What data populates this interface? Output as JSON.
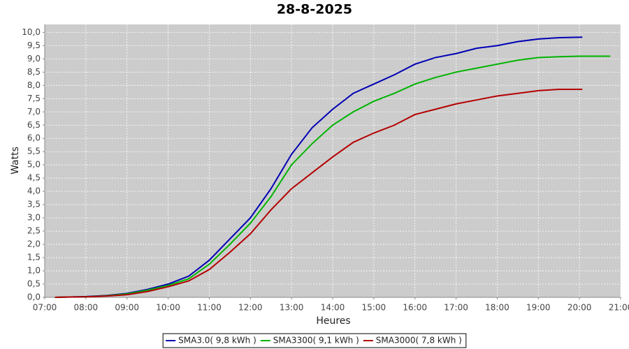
{
  "chart_data": {
    "type": "line",
    "title": "28-8-2025",
    "x_label": "Heures",
    "y_label": "Watts",
    "xlim": [
      7,
      21
    ],
    "xticks": [
      {
        "value": 7,
        "label": "07:00"
      },
      {
        "value": 8,
        "label": "08:00"
      },
      {
        "value": 9,
        "label": "09:00"
      },
      {
        "value": 10,
        "label": "10:00"
      },
      {
        "value": 11,
        "label": "11:00"
      },
      {
        "value": 12,
        "label": "12:00"
      },
      {
        "value": 13,
        "label": "13:00"
      },
      {
        "value": 14,
        "label": "14:00"
      },
      {
        "value": 15,
        "label": "15:00"
      },
      {
        "value": 16,
        "label": "16:00"
      },
      {
        "value": 17,
        "label": "17:00"
      },
      {
        "value": 18,
        "label": "18:00"
      },
      {
        "value": 19,
        "label": "19:00"
      },
      {
        "value": 20,
        "label": "20:00"
      },
      {
        "value": 21,
        "label": "21:00"
      }
    ],
    "ylim": [
      0,
      10.3
    ],
    "yticks": [
      {
        "value": 0,
        "label": "0,0"
      },
      {
        "value": 0.5,
        "label": "0,5"
      },
      {
        "value": 1,
        "label": "1,0"
      },
      {
        "value": 1.5,
        "label": "1,5"
      },
      {
        "value": 2,
        "label": "2,0"
      },
      {
        "value": 2.5,
        "label": "2,5"
      },
      {
        "value": 3,
        "label": "3,0"
      },
      {
        "value": 3.5,
        "label": "3,5"
      },
      {
        "value": 4,
        "label": "4,0"
      },
      {
        "value": 4.5,
        "label": "4,5"
      },
      {
        "value": 5,
        "label": "5,0"
      },
      {
        "value": 5.5,
        "label": "5,5"
      },
      {
        "value": 6,
        "label": "6,0"
      },
      {
        "value": 6.5,
        "label": "6,5"
      },
      {
        "value": 7,
        "label": "7,0"
      },
      {
        "value": 7.5,
        "label": "7,5"
      },
      {
        "value": 8,
        "label": "8,0"
      },
      {
        "value": 8.5,
        "label": "8,5"
      },
      {
        "value": 9,
        "label": "9,0"
      },
      {
        "value": 9.5,
        "label": "9,5"
      },
      {
        "value": 10,
        "label": "10,0"
      }
    ],
    "grid": true,
    "legend": "bottom",
    "series": [
      {
        "name": "SMA3.0( 9,8 kWh )",
        "color": "#0000b4",
        "x": [
          7.25,
          7.5,
          8,
          8.5,
          9,
          9.5,
          10,
          10.5,
          11,
          11.5,
          12,
          12.5,
          13,
          13.5,
          14,
          14.5,
          15,
          15.5,
          16,
          16.5,
          17,
          17.5,
          18,
          18.5,
          19,
          19.5,
          20.07
        ],
        "values": [
          0,
          0.01,
          0.03,
          0.07,
          0.15,
          0.3,
          0.5,
          0.8,
          1.4,
          2.2,
          3.0,
          4.1,
          5.4,
          6.4,
          7.1,
          7.7,
          8.05,
          8.4,
          8.8,
          9.05,
          9.2,
          9.4,
          9.5,
          9.65,
          9.75,
          9.8,
          9.82
        ]
      },
      {
        "name": "SMA3300( 9,1 kWh )",
        "color": "#00b400",
        "x": [
          7.25,
          7.5,
          8,
          8.5,
          9,
          9.5,
          10,
          10.5,
          11,
          11.5,
          12,
          12.5,
          13,
          13.5,
          14,
          14.5,
          15,
          15.5,
          16,
          16.5,
          17,
          17.5,
          18,
          18.5,
          19,
          19.5,
          20,
          20.75
        ],
        "values": [
          0,
          0.01,
          0.02,
          0.06,
          0.13,
          0.27,
          0.45,
          0.7,
          1.25,
          2.0,
          2.8,
          3.8,
          5.0,
          5.8,
          6.5,
          7.0,
          7.4,
          7.7,
          8.05,
          8.3,
          8.5,
          8.65,
          8.8,
          8.95,
          9.05,
          9.08,
          9.1,
          9.1
        ]
      },
      {
        "name": "SMA3000( 7,8 kWh )",
        "color": "#b40000",
        "x": [
          7.25,
          7.5,
          8,
          8.5,
          9,
          9.5,
          10,
          10.5,
          11,
          11.5,
          12,
          12.5,
          13,
          13.5,
          14,
          14.5,
          15,
          15.5,
          16,
          16.5,
          17,
          17.5,
          18,
          18.5,
          19,
          19.5,
          20.07
        ],
        "values": [
          0,
          0.01,
          0.02,
          0.05,
          0.1,
          0.22,
          0.4,
          0.62,
          1.05,
          1.7,
          2.4,
          3.3,
          4.1,
          4.7,
          5.3,
          5.85,
          6.2,
          6.5,
          6.9,
          7.1,
          7.3,
          7.45,
          7.6,
          7.7,
          7.8,
          7.85,
          7.85
        ]
      }
    ]
  }
}
